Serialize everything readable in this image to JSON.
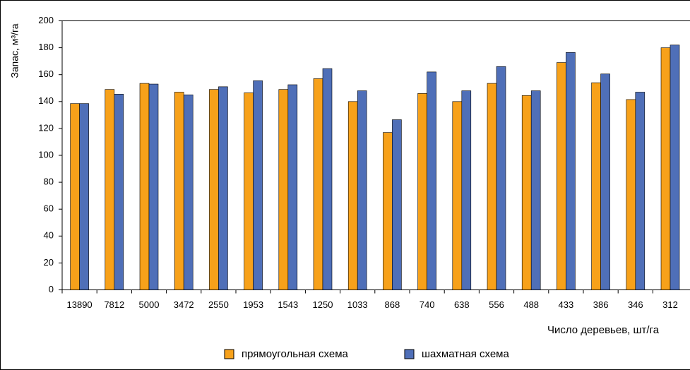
{
  "chart_data": {
    "type": "bar",
    "y_label": "Запас, м³/га",
    "x_label": "Число деревьев, шт/га",
    "categories": [
      "13890",
      "7812",
      "5000",
      "3472",
      "2550",
      "1953",
      "1543",
      "1250",
      "1033",
      "868",
      "740",
      "638",
      "556",
      "488",
      "433",
      "386",
      "346",
      "312"
    ],
    "series": [
      {
        "name": "прямоугольная схема",
        "color": "#f7a11a",
        "values": [
          138.5,
          149,
          153.5,
          147,
          149,
          146.5,
          149,
          157,
          140,
          117,
          146,
          140,
          153.5,
          144.5,
          169,
          154,
          141.5,
          180
        ]
      },
      {
        "name": "шахматная схема",
        "color": "#4f6fb8",
        "values": [
          138.5,
          145.5,
          153,
          145,
          151,
          155.5,
          152.5,
          164.5,
          148,
          126.5,
          162,
          148,
          166,
          148,
          176.5,
          160.5,
          147,
          182
        ]
      }
    ],
    "ylim": [
      0,
      200
    ],
    "yticks": [
      0,
      20,
      40,
      60,
      80,
      100,
      120,
      140,
      160,
      180,
      200
    ],
    "legend": "bottom"
  }
}
